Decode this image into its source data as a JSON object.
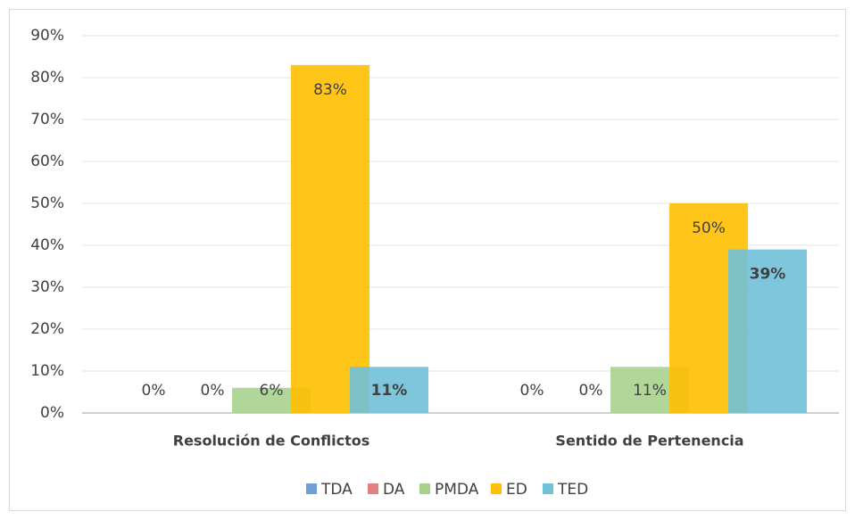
{
  "chart_data": {
    "type": "bar",
    "categories": [
      "Resolución de Conflictos",
      "Sentido de Pertenencia"
    ],
    "series": [
      {
        "name": "TDA",
        "color": "#6f9ed4",
        "values": [
          0,
          0
        ],
        "value_labels": [
          "0%",
          "0%"
        ]
      },
      {
        "name": "DA",
        "color": "#e08080",
        "values": [
          0,
          0
        ],
        "value_labels": [
          "0%",
          "0%"
        ]
      },
      {
        "name": "PMDA",
        "color": "#a9d18e",
        "values": [
          6,
          11
        ],
        "value_labels": [
          "6%",
          "11%"
        ]
      },
      {
        "name": "ED",
        "color": "#ffc000",
        "values": [
          83,
          50
        ],
        "value_labels": [
          "83%",
          "50%"
        ]
      },
      {
        "name": "TED",
        "color": "#70c0d8",
        "values": [
          11,
          39
        ],
        "value_labels": [
          "11%",
          "39%"
        ]
      }
    ],
    "ylim": [
      0,
      90
    ],
    "yticks": [
      {
        "value": 0,
        "label": "0%"
      },
      {
        "value": 10,
        "label": "10%"
      },
      {
        "value": 20,
        "label": "20%"
      },
      {
        "value": 30,
        "label": "30%"
      },
      {
        "value": 40,
        "label": "40%"
      },
      {
        "value": 50,
        "label": "50%"
      },
      {
        "value": 60,
        "label": "60%"
      },
      {
        "value": 70,
        "label": "70%"
      },
      {
        "value": 80,
        "label": "80%"
      },
      {
        "value": 90,
        "label": "90%"
      }
    ],
    "grid": true,
    "legend": "bottom"
  }
}
